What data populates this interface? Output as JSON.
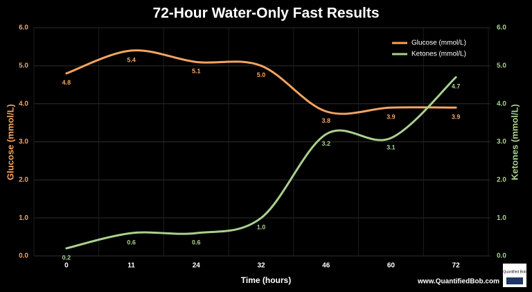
{
  "chart_data": {
    "type": "line",
    "title": "72-Hour Water-Only Fast Results",
    "x_label": "Time (hours)",
    "y_label": "Glucose (mmol/L)",
    "y2_label": "Ketones (mmol/L)",
    "categories": [
      "0",
      "11",
      "24",
      "32",
      "46",
      "60",
      "72"
    ],
    "series": [
      {
        "name": "Glucose (mmol/L)",
        "color": "#f4a460",
        "axis": "y",
        "values": [
          4.8,
          5.4,
          5.1,
          5.0,
          3.8,
          3.9,
          3.9
        ],
        "value_labels": [
          "4.8",
          "5.4",
          "5.1",
          "5.0",
          "3.8",
          "3.9",
          "3.9"
        ]
      },
      {
        "name": "Ketones (mmol/L)",
        "color": "#a9d18e",
        "axis": "y2",
        "values": [
          0.2,
          0.6,
          0.6,
          1.0,
          3.2,
          3.1,
          4.7
        ],
        "value_labels": [
          "0.2",
          "0.6",
          "0.6",
          "1.0",
          "3.2",
          "3.1",
          "4.7"
        ]
      }
    ],
    "ylim": [
      0,
      6
    ],
    "yticks": [
      {
        "value": 0,
        "label": "0.0"
      },
      {
        "value": 1,
        "label": "1.0"
      },
      {
        "value": 2,
        "label": "2.0"
      },
      {
        "value": 3,
        "label": "3.0"
      },
      {
        "value": 4,
        "label": "4.0"
      },
      {
        "value": 5,
        "label": "5.0"
      },
      {
        "value": 6,
        "label": "6.0"
      }
    ],
    "y2lim": [
      0,
      6
    ],
    "y2ticks": [
      {
        "value": 0,
        "label": "0.0"
      },
      {
        "value": 1,
        "label": "1.0"
      },
      {
        "value": 2,
        "label": "2.0"
      },
      {
        "value": 3,
        "label": "3.0"
      },
      {
        "value": 4,
        "label": "4.0"
      },
      {
        "value": 5,
        "label": "5.0"
      },
      {
        "value": 6,
        "label": "6.0"
      }
    ],
    "grid": true,
    "smooth": true,
    "legend_position": "top-right",
    "annotations": [
      "www.QuantifiedBob.com",
      "Quantified Bob"
    ]
  }
}
